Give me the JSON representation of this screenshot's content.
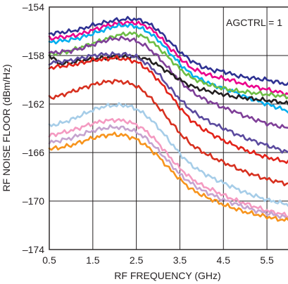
{
  "chart_data": {
    "type": "line",
    "title": "",
    "xlabel": "RF FREQUENCY (GHz)",
    "ylabel": "RF NOISE FLOOR (dBm/Hz)",
    "xlim": [
      0.5,
      6.0
    ],
    "ylim": [
      -174,
      -154
    ],
    "xticks": [
      0.5,
      1.5,
      2.5,
      3.5,
      4.5,
      5.5
    ],
    "xtick_labels": [
      "0.5",
      "1.5",
      "2.5",
      "3.5",
      "4.5",
      "5.5"
    ],
    "yticks": [
      -174,
      -170,
      -166,
      -162,
      -158,
      -154
    ],
    "ytick_labels": [
      "–174",
      "–170",
      "–166",
      "–162",
      "–158",
      "–154"
    ],
    "grid": true,
    "legend": "none",
    "annotation": "AGCTRL = 1",
    "x": [
      0.5,
      0.75,
      1.0,
      1.25,
      1.5,
      1.75,
      2.0,
      2.25,
      2.5,
      2.75,
      3.0,
      3.25,
      3.5,
      3.75,
      4.0,
      4.25,
      4.5,
      4.75,
      5.0,
      5.25,
      5.5,
      5.75,
      6.0
    ],
    "series": [
      {
        "color": "#2e3192",
        "values": [
          -156.2,
          -156.1,
          -156.0,
          -155.8,
          -155.5,
          -155.3,
          -155.1,
          -155.0,
          -155.0,
          -155.3,
          -155.9,
          -156.8,
          -157.7,
          -158.4,
          -158.9,
          -159.2,
          -159.3,
          -159.6,
          -159.8,
          -159.9,
          -160.0,
          -160.2,
          -160.4
        ]
      },
      {
        "color": "#ec008c",
        "values": [
          -156.6,
          -156.5,
          -156.4,
          -156.2,
          -155.9,
          -155.6,
          -155.4,
          -155.3,
          -155.3,
          -155.6,
          -156.3,
          -157.3,
          -158.2,
          -159.0,
          -159.4,
          -159.7,
          -159.9,
          -160.1,
          -160.4,
          -160.6,
          -160.8,
          -161.0,
          -161.2
        ]
      },
      {
        "color": "#00aeef",
        "values": [
          -156.9,
          -156.8,
          -156.7,
          -156.5,
          -156.2,
          -155.9,
          -155.6,
          -155.5,
          -155.6,
          -156.0,
          -156.7,
          -157.7,
          -158.7,
          -159.5,
          -160.0,
          -160.4,
          -160.7,
          -161.0,
          -161.4,
          -161.7,
          -162.0,
          -162.3,
          -162.6
        ]
      },
      {
        "color": "#6dbe45",
        "values": [
          -157.9,
          -157.8,
          -157.6,
          -157.3,
          -157.0,
          -156.7,
          -156.4,
          -156.2,
          -156.2,
          -156.6,
          -157.3,
          -158.2,
          -159.1,
          -159.8,
          -160.2,
          -160.5,
          -160.7,
          -160.9,
          -161.0,
          -161.1,
          -161.2,
          -161.3,
          -161.4
        ]
      },
      {
        "color": "#7f3f98",
        "values": [
          -157.8,
          -157.7,
          -157.6,
          -157.4,
          -157.1,
          -156.8,
          -156.6,
          -156.6,
          -156.8,
          -157.3,
          -158.1,
          -159.1,
          -160.1,
          -160.9,
          -161.5,
          -161.9,
          -162.3,
          -162.6,
          -163.0,
          -163.3,
          -163.6,
          -163.8,
          -164.0
        ]
      },
      {
        "color": "#231f20",
        "values": [
          -158.0,
          -158.7,
          -158.6,
          -158.4,
          -158.3,
          -158.2,
          -158.1,
          -158.1,
          -158.1,
          -158.3,
          -158.8,
          -159.4,
          -160.0,
          -160.5,
          -160.8,
          -161.0,
          -161.2,
          -161.4,
          -161.5,
          -161.6,
          -161.7,
          -161.8,
          -162.0
        ]
      },
      {
        "color": "#5b4a9e",
        "values": [
          -158.6,
          -158.5,
          -158.4,
          -158.2,
          -158.0,
          -157.9,
          -157.9,
          -157.9,
          -158.1,
          -158.7,
          -159.5,
          -160.6,
          -161.6,
          -162.5,
          -163.1,
          -163.6,
          -164.0,
          -164.4,
          -164.8,
          -165.1,
          -165.4,
          -165.7,
          -166.0
        ]
      },
      {
        "color": "#e2231a",
        "values": [
          -159.0,
          -158.9,
          -158.8,
          -158.6,
          -158.4,
          -158.3,
          -158.2,
          -158.3,
          -158.5,
          -159.1,
          -160.0,
          -161.1,
          -162.3,
          -163.3,
          -164.0,
          -164.5,
          -165.0,
          -165.4,
          -165.8,
          -166.1,
          -166.4,
          -166.6,
          -166.8
        ]
      },
      {
        "color": "#d7301f",
        "values": [
          -161.5,
          -161.3,
          -161.0,
          -160.7,
          -160.4,
          -160.2,
          -160.1,
          -160.2,
          -160.5,
          -161.2,
          -162.2,
          -163.3,
          -164.4,
          -165.3,
          -165.9,
          -166.4,
          -166.8,
          -167.2,
          -167.6,
          -167.9,
          -168.2,
          -168.4,
          -168.6
        ]
      },
      {
        "color": "#a6cde8",
        "values": [
          -163.8,
          -163.6,
          -163.3,
          -162.9,
          -162.5,
          -162.2,
          -162.1,
          -162.1,
          -162.4,
          -163.0,
          -163.9,
          -165.0,
          -166.1,
          -167.0,
          -167.6,
          -168.1,
          -168.5,
          -168.9,
          -169.3,
          -169.6,
          -169.9,
          -170.1,
          -170.3
        ]
      },
      {
        "color": "#f49ac1",
        "values": [
          -164.6,
          -164.4,
          -164.2,
          -163.9,
          -163.6,
          -163.4,
          -163.3,
          -163.4,
          -163.7,
          -164.3,
          -165.2,
          -166.3,
          -167.3,
          -168.1,
          -168.7,
          -169.1,
          -169.5,
          -169.9,
          -170.2,
          -170.5,
          -170.8,
          -171.0,
          -171.2
        ]
      },
      {
        "color": "#c5a3cf",
        "values": [
          -165.2,
          -165.0,
          -164.8,
          -164.5,
          -164.2,
          -164.0,
          -163.9,
          -164.0,
          -164.3,
          -164.9,
          -165.8,
          -166.8,
          -167.8,
          -168.5,
          -169.1,
          -169.5,
          -169.9,
          -170.2,
          -170.5,
          -170.8,
          -171.0,
          -171.2,
          -171.4
        ]
      },
      {
        "color": "#f7941d",
        "values": [
          -165.7,
          -165.6,
          -165.4,
          -165.1,
          -164.8,
          -164.6,
          -164.5,
          -164.6,
          -164.9,
          -165.5,
          -166.3,
          -167.3,
          -168.2,
          -169.0,
          -169.5,
          -169.9,
          -170.3,
          -170.6,
          -170.9,
          -171.1,
          -171.3,
          -171.5,
          -171.6
        ]
      }
    ]
  }
}
